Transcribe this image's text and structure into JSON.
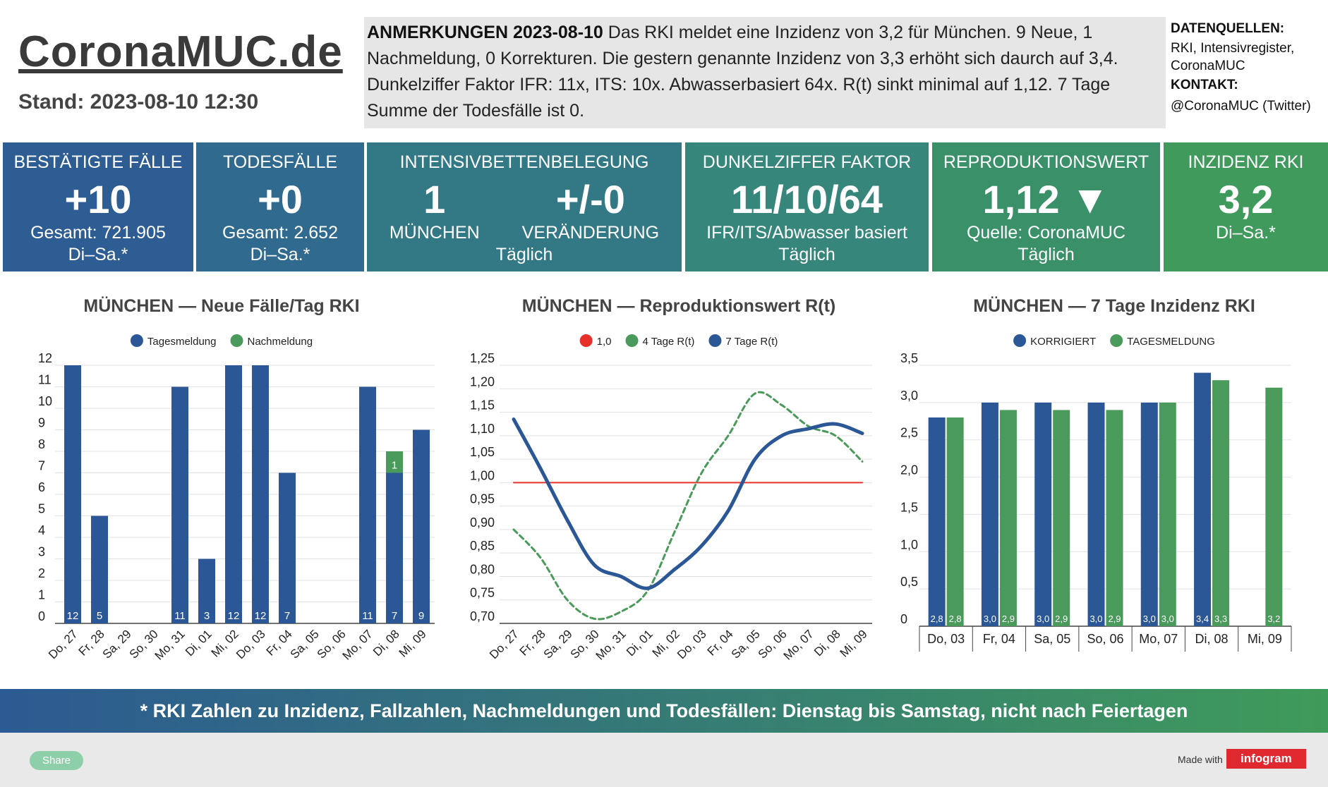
{
  "header": {
    "title": "CoronaMUC.de",
    "stand": "Stand: 2023-08-10 12:30"
  },
  "notes": {
    "label": "ANMERKUNGEN 2023-08-10",
    "text": "Das RKI meldet eine Inzidenz von 3,2 für München. 9 Neue, 1 Nachmeldung, 0 Korrekturen. Die gestern genannte Inzidenz von 3,3 erhöht sich daurch auf 3,4.  Dunkelziffer Faktor IFR: 11x, ITS: 10x. Abwasserbasiert 64x. R(t) sinkt minimal auf 1,12. 7 Tage Summe der Todesfälle ist 0."
  },
  "sources": {
    "label": "DATENQUELLEN:",
    "text": "RKI, Intensivregister, CoronaMUC",
    "contact_label": "KONTAKT:",
    "contact": "@CoronaMUC (Twitter)"
  },
  "kpis": [
    {
      "title": "BESTÄTIGTE FÄLLE",
      "value": "+10",
      "lines": [
        "Gesamt: 721.905",
        "Di–Sa.*"
      ]
    },
    {
      "title": "TODESFÄLLE",
      "value": "+0",
      "lines": [
        "Gesamt: 2.652",
        "Di–Sa.*"
      ]
    },
    {
      "title": "INTENSIVBETTENBELEGUNG",
      "columns": [
        {
          "value": "1",
          "label": "MÜNCHEN"
        },
        {
          "value": "+/-0",
          "label": "VERÄNDERUNG"
        }
      ],
      "lines": [
        "Täglich"
      ]
    },
    {
      "title": "DUNKELZIFFER FAKTOR",
      "value": "11/10/64",
      "lines": [
        "IFR/ITS/Abwasser basiert",
        "Täglich"
      ]
    },
    {
      "title": "REPRODUKTIONSWERT",
      "value": "1,12 ▼",
      "lines": [
        "Quelle: CoronaMUC",
        "Täglich"
      ]
    },
    {
      "title": "INZIDENZ RKI",
      "value": "3,2",
      "lines": [
        "Di–Sa.*"
      ]
    }
  ],
  "chart_data": [
    {
      "type": "bar",
      "stacked": true,
      "title": "MÜNCHEN — Neue Fälle/Tag RKI",
      "categories": [
        "Do, 27",
        "Fr, 28",
        "Sa, 29",
        "So, 30",
        "Mo, 31",
        "Di, 01",
        "Mi, 02",
        "Do, 03",
        "Fr, 04",
        "Sa, 05",
        "So, 06",
        "Mo, 07",
        "Di, 08",
        "Mi, 09"
      ],
      "series": [
        {
          "name": "Tagesmeldung",
          "color": "#2b5797",
          "values": [
            12,
            5,
            null,
            null,
            11,
            3,
            12,
            12,
            7,
            null,
            null,
            11,
            7,
            9
          ]
        },
        {
          "name": "Nachmeldung",
          "color": "#4a9a5b",
          "values": [
            null,
            null,
            null,
            null,
            null,
            null,
            null,
            null,
            null,
            null,
            null,
            null,
            1,
            null
          ]
        }
      ],
      "ylim": [
        0,
        12
      ],
      "yticks": [
        0,
        1,
        2,
        3,
        4,
        5,
        6,
        7,
        8,
        9,
        10,
        11,
        12
      ],
      "grid": true,
      "legend": "top"
    },
    {
      "type": "line",
      "title": "MÜNCHEN — Reproduktionswert R(t)",
      "categories": [
        "Do, 27",
        "Fr, 28",
        "Sa, 29",
        "So, 30",
        "Mo, 31",
        "Di, 01",
        "Mi, 02",
        "Do, 03",
        "Fr, 04",
        "Sa, 05",
        "So, 06",
        "Mo, 07",
        "Di, 08",
        "Mi, 09"
      ],
      "series": [
        {
          "name": "1,0",
          "color": "#e8302a",
          "values": [
            1.0,
            1.0,
            1.0,
            1.0,
            1.0,
            1.0,
            1.0,
            1.0,
            1.0,
            1.0,
            1.0,
            1.0,
            1.0,
            1.0
          ]
        },
        {
          "name": "4 Tage R(t)",
          "color": "#4a9a5b",
          "dashed": true,
          "values": [
            0.9,
            0.84,
            0.75,
            0.71,
            0.725,
            0.77,
            0.895,
            1.02,
            1.1,
            1.19,
            1.165,
            1.12,
            1.1,
            1.045
          ]
        },
        {
          "name": "7 Tage R(t)",
          "color": "#2b5797",
          "values": [
            1.135,
            1.03,
            0.92,
            0.825,
            0.8,
            0.775,
            0.815,
            0.865,
            0.94,
            1.05,
            1.1,
            1.115,
            1.125,
            1.105
          ]
        }
      ],
      "ylim": [
        0.7,
        1.25
      ],
      "yticks": [
        {
          "value": 0.7,
          "label": "0,70"
        },
        {
          "value": 0.75,
          "label": "0,75"
        },
        {
          "value": 0.8,
          "label": "0,80"
        },
        {
          "value": 0.85,
          "label": "0,85"
        },
        {
          "value": 0.9,
          "label": "0,90"
        },
        {
          "value": 0.95,
          "label": "0,95"
        },
        {
          "value": 1.0,
          "label": "1,00"
        },
        {
          "value": 1.05,
          "label": "1,05"
        },
        {
          "value": 1.1,
          "label": "1,10"
        },
        {
          "value": 1.15,
          "label": "1,15"
        },
        {
          "value": 1.2,
          "label": "1,20"
        },
        {
          "value": 1.25,
          "label": "1,25"
        }
      ],
      "grid": true,
      "legend": "top"
    },
    {
      "type": "bar",
      "stacked": false,
      "title": "MÜNCHEN — 7 Tage Inzidenz RKI",
      "categories": [
        "Do, 03",
        "Fr, 04",
        "Sa, 05",
        "So, 06",
        "Mo, 07",
        "Di, 08",
        "Mi, 09"
      ],
      "series": [
        {
          "name": "KORRIGIERT",
          "color": "#2b5797",
          "values": [
            2.8,
            3.0,
            3.0,
            3.0,
            3.0,
            3.4,
            null
          ],
          "value_labels": [
            "2,8",
            "3,0",
            "3,0",
            "3,0",
            "3,0",
            "3,4",
            null
          ]
        },
        {
          "name": "TAGESMELDUNG",
          "color": "#4a9a5b",
          "values": [
            2.8,
            2.9,
            2.9,
            2.9,
            3.0,
            3.3,
            3.2
          ],
          "value_labels": [
            "2,8",
            "2,9",
            "2,9",
            "2,9",
            "3,0",
            "3,3",
            "3,2"
          ]
        }
      ],
      "ylim": [
        0,
        3.5
      ],
      "yticks": [
        0,
        {
          "value": 0.5,
          "label": "0,5"
        },
        {
          "value": 1.0,
          "label": "1,0"
        },
        {
          "value": 1.5,
          "label": "1,5"
        },
        {
          "value": 2.0,
          "label": "2,0"
        },
        {
          "value": 2.5,
          "label": "2,5"
        },
        {
          "value": 3.0,
          "label": "3,0"
        },
        {
          "value": 3.5,
          "label": "3,5"
        }
      ],
      "grid": true,
      "legend": "top"
    }
  ],
  "footer": {
    "note": "* RKI Zahlen zu Inzidenz, Fallzahlen, Nachmeldungen und Todesfällen: Dienstag bis Samstag, nicht nach Feiertagen",
    "share": "Share",
    "made_with": "Made with",
    "brand": "infogram"
  }
}
